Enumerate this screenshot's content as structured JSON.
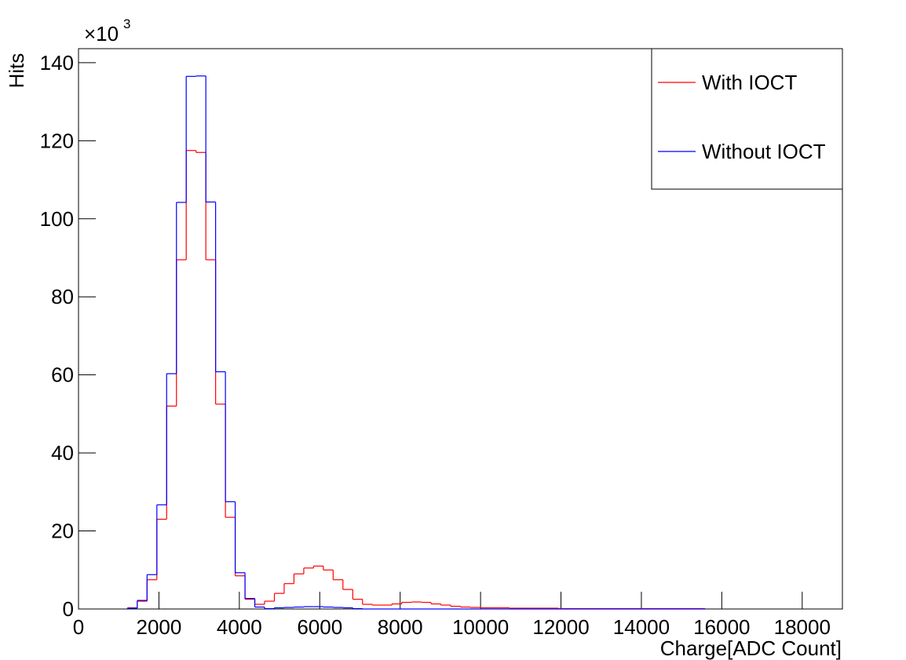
{
  "chart_data": {
    "type": "histogram",
    "y_label": "Hits",
    "x_label": "Charge[ADC Count]",
    "y_scale_label": "×10",
    "y_scale_exponent": "3",
    "xlim": [
      0,
      19000
    ],
    "ylim": [
      0,
      143.6
    ],
    "xticks": [
      0,
      2000,
      4000,
      6000,
      8000,
      10000,
      12000,
      14000,
      16000,
      18000
    ],
    "yticks": [
      0,
      20,
      40,
      60,
      80,
      100,
      120,
      140
    ],
    "legend": "top-right",
    "bins": [
      1218,
      1462,
      1705,
      1949,
      2192,
      2436,
      2679,
      2923,
      3167,
      3410,
      3654,
      3897,
      4141,
      4385,
      4628,
      4872,
      5115,
      5359,
      5603,
      5846,
      6090,
      6333,
      6577,
      6821,
      7064,
      7308,
      7551,
      7795,
      8038,
      8282,
      8526,
      8769,
      9013,
      9256,
      9500,
      9744,
      9987,
      10231,
      10474,
      10718,
      10962,
      11205,
      11449,
      11692,
      11936,
      12179,
      12423,
      12667,
      12910,
      13154,
      13397,
      13641,
      13885,
      14128,
      14372,
      14615,
      14859,
      15103,
      15346,
      15590
    ],
    "series": [
      {
        "name": "With IOCT",
        "color": "#ff0000",
        "values": [
          0.3,
          2,
          7.5,
          23,
          52,
          89.5,
          117.5,
          117,
          89.5,
          52.5,
          23.5,
          8.5,
          2.5,
          1.2,
          2,
          4,
          6.5,
          9,
          10.5,
          11,
          10,
          7.5,
          5,
          2.5,
          1.2,
          1,
          1,
          1.3,
          1.7,
          1.8,
          1.7,
          1.3,
          1,
          0.7,
          0.5,
          0.4,
          0.3,
          0.3,
          0.3,
          0.2,
          0.2,
          0.2,
          0.2,
          0.2,
          0.1,
          0.1,
          0.1,
          0.1,
          0.1,
          0.1,
          0.1,
          0.1,
          0.1,
          0.1,
          0.1,
          0.1,
          0.1,
          0.1,
          0.1
        ]
      },
      {
        "name": "Without IOCT",
        "color": "#0000ff",
        "values": [
          0.2,
          2.2,
          8.8,
          26.7,
          60.3,
          104.2,
          136.5,
          136.6,
          104.3,
          60.8,
          27.5,
          9.3,
          2.7,
          0.5,
          0.1,
          0.3,
          0.4,
          0.5,
          0.6,
          0.6,
          0.5,
          0.4,
          0.3,
          0.1,
          0,
          0,
          0,
          0,
          0,
          0,
          0,
          0,
          0,
          0,
          0,
          0,
          0,
          0,
          0,
          0,
          0,
          0,
          0,
          0,
          0,
          0,
          0,
          0,
          0,
          0,
          0,
          0,
          0,
          0,
          0,
          0,
          0,
          0,
          0
        ]
      }
    ]
  }
}
